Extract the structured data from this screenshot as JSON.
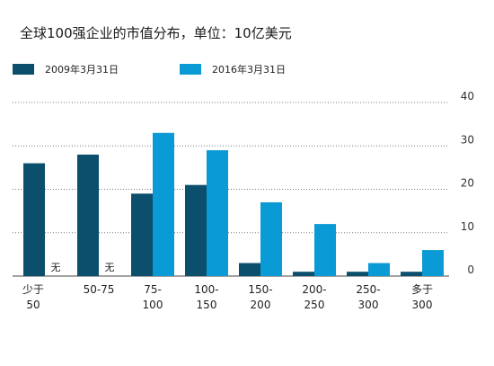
{
  "chart_data": {
    "type": "bar",
    "title": "全球100强企业的市值分布，单位：10亿美元",
    "categories": [
      [
        "少于",
        "50"
      ],
      [
        "50-75"
      ],
      [
        "75-",
        "100"
      ],
      [
        "100-",
        "150"
      ],
      [
        "150-",
        "200"
      ],
      [
        "200-",
        "250"
      ],
      [
        "250-",
        "300"
      ],
      [
        "多于",
        "300"
      ]
    ],
    "series": [
      {
        "name": "2009年3月31日",
        "color": "#0b4f6c",
        "values": [
          26,
          28,
          19,
          21,
          3,
          1,
          1,
          1
        ]
      },
      {
        "name": "2016年3月31日",
        "color": "#0a9ad6",
        "values": [
          0,
          0,
          33,
          29,
          17,
          12,
          3,
          6
        ]
      }
    ],
    "missing_label": "无",
    "ylim": [
      0,
      40
    ],
    "yticks": [
      0,
      10,
      20,
      30,
      40
    ],
    "grid": true,
    "legend_position": "top-left"
  }
}
